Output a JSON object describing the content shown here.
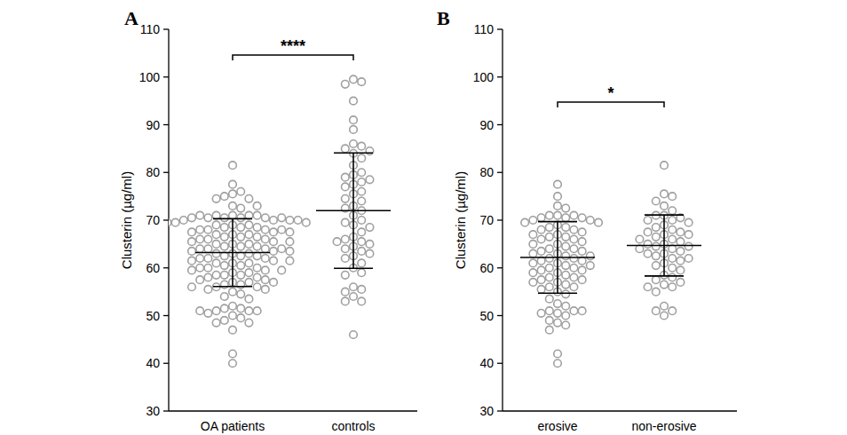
{
  "chart_data": [
    {
      "type": "strip",
      "panel_label": "A",
      "y_label": "Clusterin (µg/ml)",
      "categories": [
        "OA patients",
        "controls"
      ],
      "values": [
        [
          81.5,
          77.5,
          76,
          75.5,
          75,
          74.5,
          74.5,
          73,
          73,
          72.5,
          71,
          71,
          71,
          71,
          71,
          70.5,
          70.5,
          70.5,
          70.5,
          70.5,
          70.5,
          70,
          70,
          70,
          70,
          69.5,
          69.5,
          69.5,
          69,
          69,
          69,
          68.5,
          68.5,
          68.5,
          68,
          68,
          68,
          68,
          67.5,
          67.5,
          67.5,
          67,
          67,
          67,
          66.5,
          66.5,
          66.5,
          66,
          66,
          66,
          65.5,
          65.5,
          65.5,
          65,
          65,
          65,
          64.5,
          64.5,
          64.5,
          64,
          64,
          64,
          64,
          63.5,
          63.5,
          63.5,
          63,
          63,
          63,
          62.5,
          62.5,
          62.5,
          62,
          62,
          62,
          61.5,
          61.5,
          61.5,
          61,
          61,
          61,
          60.5,
          60.5,
          60,
          60,
          60,
          59.5,
          59.5,
          59.5,
          59,
          59,
          58.5,
          58.5,
          58.5,
          58,
          58,
          57.5,
          57.5,
          57,
          57,
          57,
          56.5,
          56.5,
          56,
          56,
          56,
          55.5,
          55.5,
          55,
          54.5,
          54,
          53.5,
          52,
          51.5,
          51.5,
          51,
          51,
          51,
          51,
          50.5,
          50,
          49.5,
          49,
          48.5,
          48.5,
          47,
          42,
          40
        ],
        [
          99.5,
          99,
          98.5,
          95,
          91,
          89,
          86,
          85.5,
          85,
          84.5,
          84,
          83,
          81.5,
          80,
          79.5,
          79,
          78.5,
          78,
          77.5,
          77,
          76,
          75.5,
          74.5,
          74,
          73,
          72.5,
          72,
          71,
          70,
          69.5,
          69,
          68.5,
          67.5,
          66.5,
          66,
          65.5,
          65.5,
          65,
          64.5,
          64,
          63.5,
          63,
          62.5,
          62,
          61,
          60,
          59,
          58.5,
          56,
          55.5,
          55,
          54,
          53,
          53,
          46
        ]
      ],
      "means": [
        63.2,
        72.0
      ],
      "sd": [
        7.1,
        12.1
      ],
      "annotation": "****",
      "color": "#a0a0a0",
      "marker": "open-circle",
      "ylim": [
        30,
        110
      ],
      "yticks": [
        30,
        40,
        50,
        60,
        70,
        80,
        90,
        100,
        110
      ]
    },
    {
      "type": "strip",
      "panel_label": "B",
      "y_label": "Clusterin (µg/ml)",
      "categories": [
        "erosive",
        "non-erosive"
      ],
      "values": [
        [
          77.5,
          75,
          73,
          72.5,
          71,
          71,
          71,
          70.5,
          70.5,
          70.5,
          70,
          70,
          69.5,
          69.5,
          69,
          68.5,
          68.5,
          68,
          68,
          67.5,
          67,
          67,
          66.5,
          66.5,
          66,
          66,
          65.5,
          65,
          65,
          64.5,
          64,
          64,
          63.5,
          63.5,
          63,
          63,
          62.5,
          62.5,
          62,
          62,
          61.5,
          61.5,
          61,
          61,
          60.5,
          60.5,
          60,
          60,
          59.5,
          59.5,
          59,
          59,
          58.5,
          58,
          58,
          57.5,
          57.5,
          57,
          57,
          56.5,
          56,
          56,
          55.5,
          55,
          54.5,
          53.5,
          52.5,
          52,
          51,
          51,
          51,
          50.5,
          50.5,
          50,
          49,
          48.5,
          48,
          47,
          42,
          40
        ],
        [
          81.5,
          75.5,
          75,
          74,
          73,
          72,
          71,
          71,
          70.5,
          70,
          70,
          69.5,
          69,
          68.5,
          68,
          67.5,
          67.5,
          67,
          67,
          66.5,
          66,
          66,
          65.5,
          65,
          65,
          64.5,
          64.5,
          64,
          64,
          63.5,
          63,
          63,
          62.5,
          62,
          62,
          61.5,
          61,
          60.5,
          60,
          59.5,
          58.5,
          58,
          57.5,
          57,
          56.5,
          56,
          56,
          55,
          52,
          51,
          51,
          50
        ]
      ],
      "means": [
        62.2,
        64.7
      ],
      "sd": [
        7.5,
        6.4
      ],
      "annotation": "*",
      "color": "#a0a0a0",
      "marker": "open-circle",
      "ylim": [
        30,
        110
      ],
      "yticks": [
        30,
        40,
        50,
        60,
        70,
        80,
        90,
        100,
        110
      ]
    }
  ]
}
